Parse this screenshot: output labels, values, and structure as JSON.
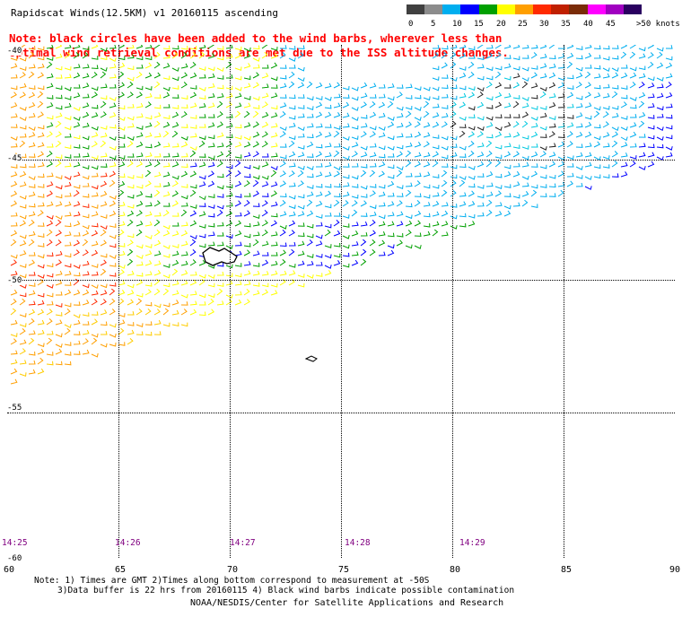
{
  "title": "Rapidscat Winds(12.5KM) v1 20160115 ascending",
  "note": {
    "line1": "Note: black circles have been added to the wind barbs, wherever less than",
    "line2": "optimal wind retrieval conditions are met due to the ISS altitude changes."
  },
  "scale": {
    "labels": [
      "0",
      "5",
      "10",
      "15",
      "20",
      "25",
      "30",
      "35",
      "40",
      "45",
      ">50 knots"
    ],
    "colors": [
      "#404040",
      "#8c8c8c",
      "#00aeef",
      "#0000ff",
      "#00a000",
      "#ffff00",
      "#ff9f00",
      "#ff2a00",
      "#c02000",
      "#7a2c08",
      "#ff00ff",
      "#a000c0",
      "#2a0060"
    ]
  },
  "lat_labels": [
    "-40",
    "-45",
    "-50",
    "-55",
    "-60"
  ],
  "lon_labels": [
    "60",
    "65",
    "70",
    "75",
    "80",
    "85",
    "90"
  ],
  "times": [
    "14:25",
    "14:26",
    "14:27",
    "14:28",
    "14:29"
  ],
  "notes": {
    "line1": "Note: 1) Times are GMT 2)Times along bottom correspond to measurement at -50S",
    "line2": "3)Data buffer is 22 hrs from 20160115 4) Black wind barbs indicate possible contamination"
  },
  "credit": "NOAA/NESDIS/Center for Satellite Applications and Research"
}
